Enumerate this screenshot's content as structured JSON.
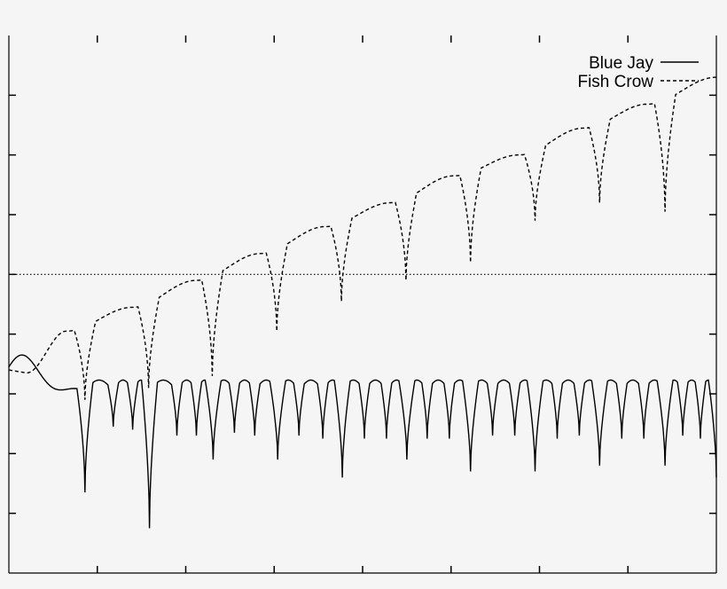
{
  "chart_data": {
    "type": "line",
    "title": "",
    "xlabel": "",
    "ylabel": "",
    "xlim": [
      0,
      8
    ],
    "ylim": [
      -5,
      4
    ],
    "grid": false,
    "legend_position": "top-right",
    "reference_line": {
      "y": 0,
      "style": "dotted"
    },
    "series": [
      {
        "name": "Blue Jay",
        "style": "solid",
        "color": "#000000",
        "baseline": -1.95,
        "lobe_height": 0.18,
        "start": {
          "value": -1.55,
          "ramp_end_x": 0.85
        },
        "deep_dips": [
          {
            "x": 0.86,
            "y": -3.65
          },
          {
            "x": 1.59,
            "y": -4.25
          },
          {
            "x": 2.31,
            "y": -3.1
          },
          {
            "x": 3.04,
            "y": -3.1
          },
          {
            "x": 3.77,
            "y": -3.4
          },
          {
            "x": 4.5,
            "y": -3.1
          },
          {
            "x": 5.22,
            "y": -3.3
          },
          {
            "x": 5.95,
            "y": -3.3
          },
          {
            "x": 6.68,
            "y": -3.2
          },
          {
            "x": 7.42,
            "y": -3.2
          },
          {
            "x": 8.0,
            "y": -3.4
          }
        ],
        "shallow_dips": [
          {
            "x": 1.18,
            "y": -2.55
          },
          {
            "x": 1.4,
            "y": -2.6
          },
          {
            "x": 1.9,
            "y": -2.7
          },
          {
            "x": 2.12,
            "y": -2.7
          },
          {
            "x": 2.55,
            "y": -2.65
          },
          {
            "x": 2.78,
            "y": -2.7
          },
          {
            "x": 3.28,
            "y": -2.7
          },
          {
            "x": 3.55,
            "y": -2.75
          },
          {
            "x": 4.02,
            "y": -2.75
          },
          {
            "x": 4.27,
            "y": -2.75
          },
          {
            "x": 4.73,
            "y": -2.75
          },
          {
            "x": 4.98,
            "y": -2.75
          },
          {
            "x": 5.47,
            "y": -2.7
          },
          {
            "x": 5.72,
            "y": -2.7
          },
          {
            "x": 6.2,
            "y": -2.75
          },
          {
            "x": 6.45,
            "y": -2.7
          },
          {
            "x": 6.93,
            "y": -2.75
          },
          {
            "x": 7.18,
            "y": -2.75
          },
          {
            "x": 7.62,
            "y": -2.7
          },
          {
            "x": 7.82,
            "y": -2.75
          }
        ]
      },
      {
        "name": "Fish Crow",
        "style": "dashed",
        "color": "#000000",
        "start": {
          "value": -1.6,
          "ramp_end_x": 0.85
        },
        "peaks": [
          {
            "x": 0.2,
            "y": -1.65
          },
          {
            "x": 0.65,
            "y": -0.95
          },
          {
            "x": 1.4,
            "y": -0.55
          },
          {
            "x": 2.12,
            "y": -0.1
          },
          {
            "x": 2.85,
            "y": 0.35
          },
          {
            "x": 3.58,
            "y": 0.8
          },
          {
            "x": 4.32,
            "y": 1.2
          },
          {
            "x": 5.03,
            "y": 1.65
          },
          {
            "x": 5.77,
            "y": 2.0
          },
          {
            "x": 6.5,
            "y": 2.45
          },
          {
            "x": 7.22,
            "y": 2.85
          },
          {
            "x": 8.0,
            "y": 3.3
          }
        ],
        "dips": [
          {
            "x": 0.86,
            "y": -2.1
          },
          {
            "x": 1.58,
            "y": -1.9
          },
          {
            "x": 2.3,
            "y": -1.7
          },
          {
            "x": 3.03,
            "y": -0.95
          },
          {
            "x": 3.76,
            "y": -0.45
          },
          {
            "x": 4.49,
            "y": -0.1
          },
          {
            "x": 5.22,
            "y": 0.2
          },
          {
            "x": 5.95,
            "y": 0.9
          },
          {
            "x": 6.68,
            "y": 1.2
          },
          {
            "x": 7.42,
            "y": 1.05
          }
        ]
      }
    ]
  }
}
